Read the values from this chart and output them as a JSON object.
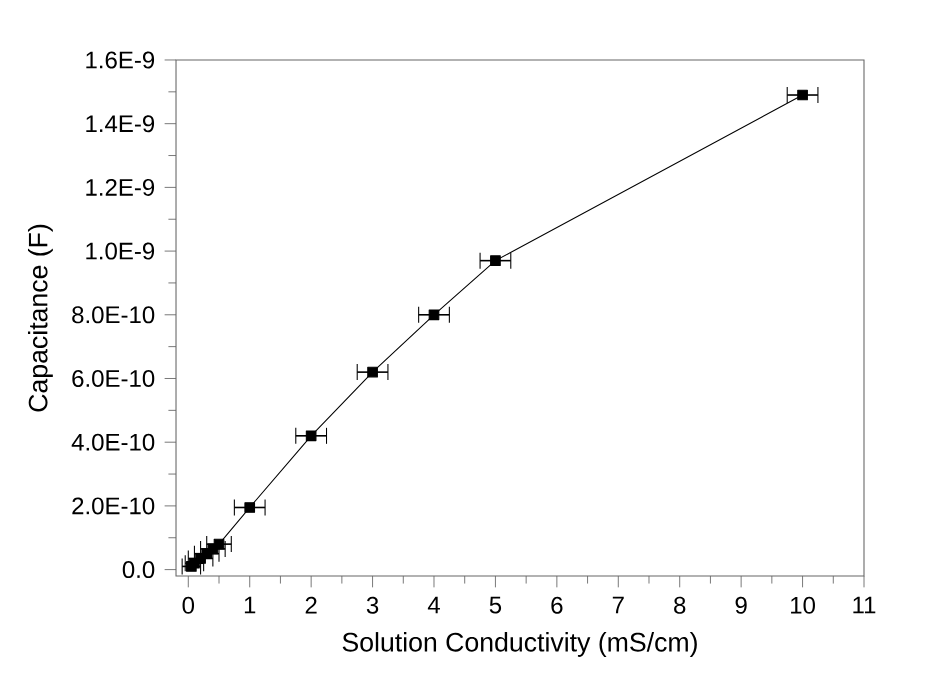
{
  "chart_data": {
    "type": "line",
    "xlabel": "Solution Conductivity (mS/cm)",
    "ylabel": "Capacitance (F)",
    "x": [
      0.05,
      0.1,
      0.2,
      0.3,
      0.4,
      0.5,
      1,
      2,
      3,
      4,
      5,
      10
    ],
    "values": [
      1e-11,
      2e-11,
      3.5e-11,
      5e-11,
      6.5e-11,
      8e-11,
      1.95e-10,
      4.2e-10,
      6.2e-10,
      8e-10,
      9.7e-10,
      1.49e-09
    ],
    "xerrors": [
      0.15,
      0.15,
      0.2,
      0.2,
      0.2,
      0.2,
      0.25,
      0.25,
      0.25,
      0.25,
      0.25,
      0.25
    ],
    "color": "#000000",
    "marker": "square",
    "line_style": "solid",
    "xlim": [
      -0.2,
      11
    ],
    "xticks": [
      0,
      1,
      2,
      3,
      4,
      5,
      6,
      7,
      8,
      9,
      10,
      11
    ],
    "ylim": [
      -2e-11,
      1.6e-09
    ],
    "yticks": [
      {
        "value": 0,
        "label": "0.0"
      },
      {
        "value": 2e-10,
        "label": "2.0E-10"
      },
      {
        "value": 4e-10,
        "label": "4.0E-10"
      },
      {
        "value": 6e-10,
        "label": "6.0E-10"
      },
      {
        "value": 8e-10,
        "label": "8.0E-10"
      },
      {
        "value": 1e-09,
        "label": "1.0E-9"
      },
      {
        "value": 1.2e-09,
        "label": "1.2E-9"
      },
      {
        "value": 1.4e-09,
        "label": "1.4E-9"
      },
      {
        "value": 1.6e-09,
        "label": "1.6E-9"
      }
    ]
  }
}
